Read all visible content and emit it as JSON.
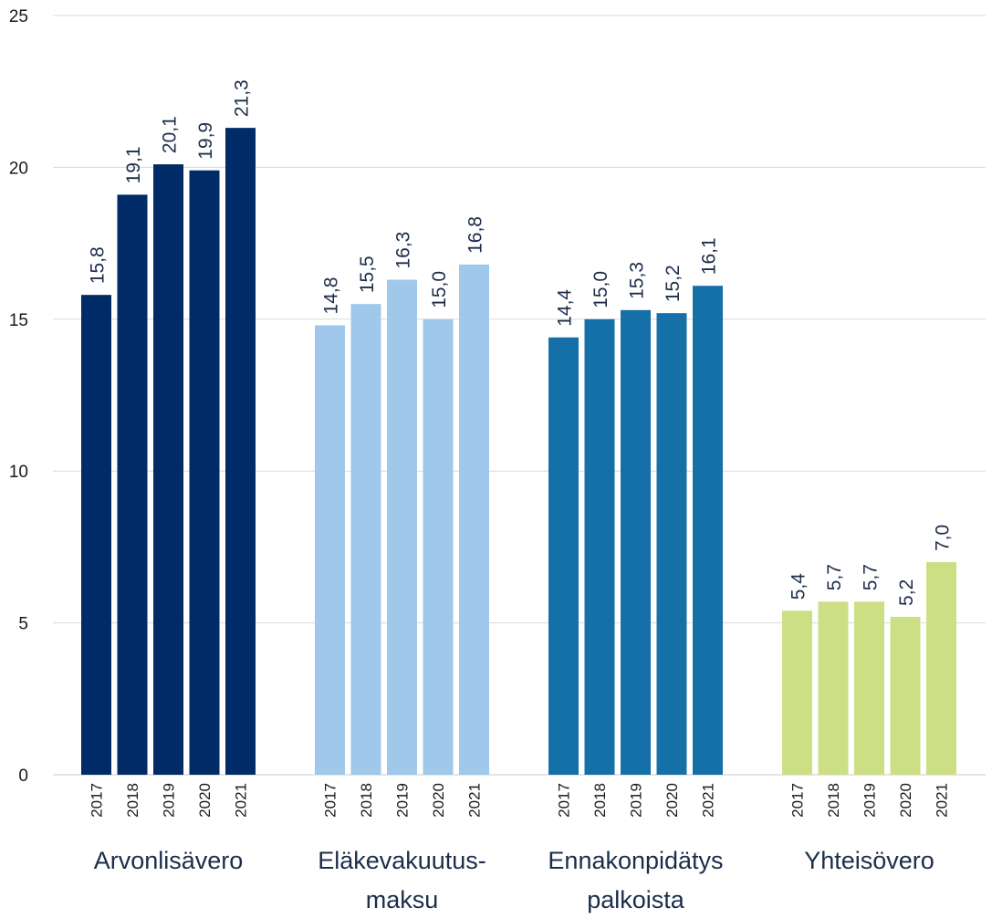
{
  "chart_data": {
    "type": "bar",
    "title": "",
    "xlabel": "",
    "ylabel": "",
    "ylim": [
      0,
      25
    ],
    "yticks": [
      "0",
      "5",
      "10",
      "15",
      "20",
      "25"
    ],
    "grid": true,
    "legend": "none",
    "groups": [
      {
        "label_lines": [
          "Arvonlisävero"
        ],
        "color": "#002b66",
        "categories": [
          "2017",
          "2018",
          "2019",
          "2020",
          "2021"
        ],
        "values": [
          15.8,
          19.1,
          20.1,
          19.9,
          21.3
        ],
        "value_labels": [
          "15,8",
          "19,1",
          "20,1",
          "19,9",
          "21,3"
        ]
      },
      {
        "label_lines": [
          "Eläkevakuutus-",
          "maksu"
        ],
        "color": "#a0c8ea",
        "categories": [
          "2017",
          "2018",
          "2019",
          "2020",
          "2021"
        ],
        "values": [
          14.8,
          15.5,
          16.3,
          15.0,
          16.8
        ],
        "value_labels": [
          "14,8",
          "15,5",
          "16,3",
          "15,0",
          "16,8"
        ]
      },
      {
        "label_lines": [
          "Ennakonpidätys",
          "palkoista"
        ],
        "color": "#1570a8",
        "categories": [
          "2017",
          "2018",
          "2019",
          "2020",
          "2021"
        ],
        "values": [
          14.4,
          15.0,
          15.3,
          15.2,
          16.1
        ],
        "value_labels": [
          "14,4",
          "15,0",
          "15,3",
          "15,2",
          "16,1"
        ]
      },
      {
        "label_lines": [
          "Yhteisövero"
        ],
        "color": "#ccdf84",
        "categories": [
          "2017",
          "2018",
          "2019",
          "2020",
          "2021"
        ],
        "values": [
          5.4,
          5.7,
          5.7,
          5.2,
          7.0
        ],
        "value_labels": [
          "5,4",
          "5,7",
          "5,7",
          "5,2",
          "7,0"
        ]
      }
    ]
  }
}
